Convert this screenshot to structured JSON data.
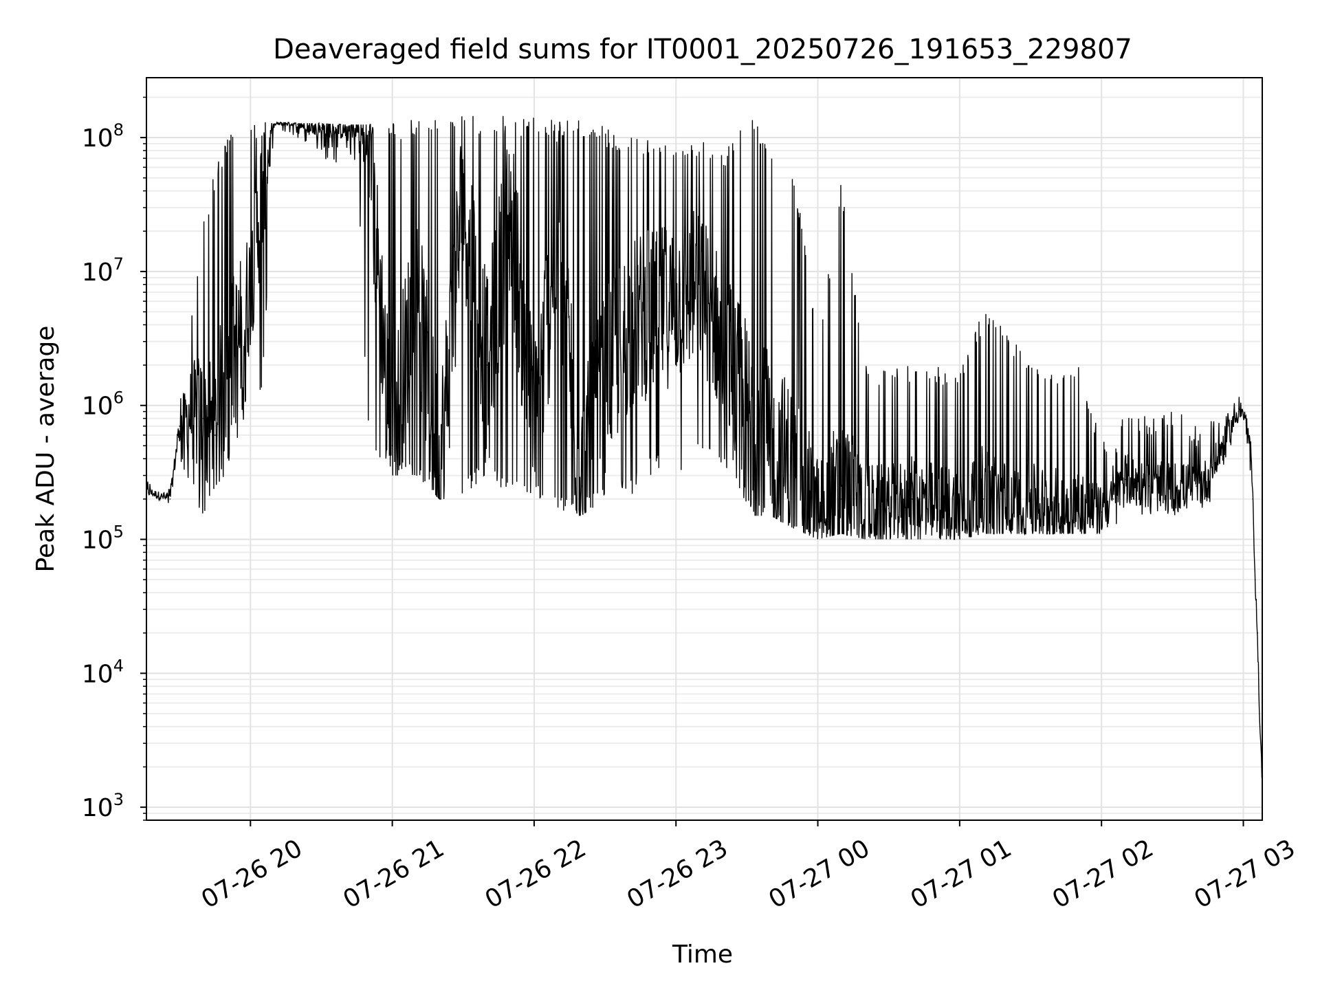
{
  "chart_data": {
    "type": "line",
    "title": "Deaveraged field sums for IT0001_20250726_191653_229807",
    "xlabel": "Time",
    "ylabel": "Peak ADU - average",
    "yscale": "log",
    "grid": true,
    "legend": "none",
    "xlim": [
      "2025-07-26 19:16",
      "2025-07-27 03:08"
    ],
    "ylim": [
      800,
      280000000
    ],
    "x_ticks": [
      {
        "value": "2025-07-26 20:00",
        "label": "07-26 20"
      },
      {
        "value": "2025-07-26 21:00",
        "label": "07-26 21"
      },
      {
        "value": "2025-07-26 22:00",
        "label": "07-26 22"
      },
      {
        "value": "2025-07-26 23:00",
        "label": "07-26 23"
      },
      {
        "value": "2025-07-27 00:00",
        "label": "07-27 00"
      },
      {
        "value": "2025-07-27 01:00",
        "label": "07-27 01"
      },
      {
        "value": "2025-07-27 02:00",
        "label": "07-27 02"
      },
      {
        "value": "2025-07-27 03:00",
        "label": "07-27 03"
      }
    ],
    "y_ticks": [
      {
        "value": 1000,
        "base": "10",
        "exp": "3"
      },
      {
        "value": 10000,
        "base": "10",
        "exp": "4"
      },
      {
        "value": 100000,
        "base": "10",
        "exp": "5"
      },
      {
        "value": 1000000,
        "base": "10",
        "exp": "6"
      },
      {
        "value": 10000000,
        "base": "10",
        "exp": "7"
      },
      {
        "value": 100000000,
        "base": "10",
        "exp": "8"
      }
    ],
    "series": [
      {
        "color": "#000000",
        "x": [
          "2025-07-26 19:16",
          "2025-07-26 19:22",
          "2025-07-26 19:26",
          "2025-07-26 19:30",
          "2025-07-26 19:35",
          "2025-07-26 19:40",
          "2025-07-26 19:45",
          "2025-07-26 19:50",
          "2025-07-26 19:55",
          "2025-07-26 20:00",
          "2025-07-26 20:05",
          "2025-07-26 20:10",
          "2025-07-26 20:15",
          "2025-07-26 20:20",
          "2025-07-26 20:30",
          "2025-07-26 20:40",
          "2025-07-26 20:45",
          "2025-07-26 20:50",
          "2025-07-26 21:00",
          "2025-07-26 21:10",
          "2025-07-26 21:20",
          "2025-07-26 21:30",
          "2025-07-26 21:40",
          "2025-07-26 21:50",
          "2025-07-26 22:00",
          "2025-07-26 22:10",
          "2025-07-26 22:20",
          "2025-07-26 22:30",
          "2025-07-26 22:40",
          "2025-07-26 22:50",
          "2025-07-26 23:00",
          "2025-07-26 23:10",
          "2025-07-26 23:20",
          "2025-07-26 23:30",
          "2025-07-26 23:40",
          "2025-07-26 23:50",
          "2025-07-27 00:00",
          "2025-07-27 00:10",
          "2025-07-27 00:20",
          "2025-07-27 00:30",
          "2025-07-27 00:40",
          "2025-07-27 00:50",
          "2025-07-27 01:00",
          "2025-07-27 01:10",
          "2025-07-27 01:20",
          "2025-07-27 01:30",
          "2025-07-27 01:40",
          "2025-07-27 01:50",
          "2025-07-27 02:00",
          "2025-07-27 02:05",
          "2025-07-27 02:10",
          "2025-07-27 02:20",
          "2025-07-27 02:30",
          "2025-07-27 02:40",
          "2025-07-27 02:45",
          "2025-07-27 02:50",
          "2025-07-27 02:55",
          "2025-07-27 02:58",
          "2025-07-27 03:00",
          "2025-07-27 03:01",
          "2025-07-27 03:03",
          "2025-07-27 03:04",
          "2025-07-27 03:05",
          "2025-07-27 03:06",
          "2025-07-27 03:07",
          "2025-07-27 03:08"
        ],
        "y": [
          230000,
          210000,
          200000,
          700000,
          900000,
          800000,
          600000,
          2000000,
          3000000,
          8000000,
          40000000,
          125000000,
          128000000,
          125000000,
          118000000,
          115000000,
          120000000,
          80000000,
          500000,
          8000000,
          300000,
          40000000,
          2000000,
          30000000,
          600000,
          20000000,
          250000,
          1500000,
          4000000,
          5000000,
          6000000,
          8000000,
          3000000,
          800000,
          500000,
          300000,
          180000,
          200000,
          180000,
          170000,
          200000,
          180000,
          170000,
          200000,
          160000,
          180000,
          170000,
          180000,
          160000,
          200000,
          280000,
          250000,
          240000,
          250000,
          280000,
          450000,
          700000,
          900000,
          850000,
          800000,
          500000,
          200000,
          50000,
          20000,
          4000,
          1500
        ],
        "envelope": {
          "low": [
            200000,
            190000,
            180000,
            400000,
            200000,
            150000,
            250000,
            300000,
            500000,
            1500000,
            1000000,
            120000000,
            110000000,
            100000000,
            70000000,
            60000000,
            60000000,
            500000,
            300000,
            300000,
            200000,
            200000,
            300000,
            200000,
            200000,
            150000,
            150000,
            200000,
            200000,
            300000,
            300000,
            400000,
            300000,
            150000,
            150000,
            120000,
            100000,
            110000,
            100000,
            100000,
            100000,
            100000,
            100000,
            110000,
            110000,
            110000,
            110000,
            110000,
            110000,
            90000,
            160000,
            150000,
            150000,
            150000,
            170000,
            300000,
            500000,
            700000,
            700000,
            600000,
            300000,
            150000,
            40000,
            15000,
            3000,
            1200
          ],
          "high": [
            280000,
            250000,
            260000,
            1000000,
            5000000,
            25000000,
            60000000,
            100000000,
            120000000,
            130000000,
            130000000,
            130000000,
            130000000,
            128000000,
            128000000,
            125000000,
            125000000,
            125000000,
            130000000,
            140000000,
            145000000,
            145000000,
            145000000,
            145000000,
            145000000,
            140000000,
            140000000,
            120000000,
            100000000,
            100000000,
            100000000,
            100000000,
            80000000,
            160000000,
            90000000,
            60000000,
            3000000,
            50000000,
            2000000,
            2000000,
            2000000,
            2000000,
            2000000,
            5000000,
            4000000,
            2000000,
            2000000,
            2000000,
            600000,
            400000,
            1000000,
            800000,
            1000000,
            700000,
            800000,
            900000,
            1200000,
            1400000,
            1100000,
            900000,
            600000,
            250000,
            60000,
            25000,
            5000,
            2000
          ]
        }
      }
    ]
  }
}
